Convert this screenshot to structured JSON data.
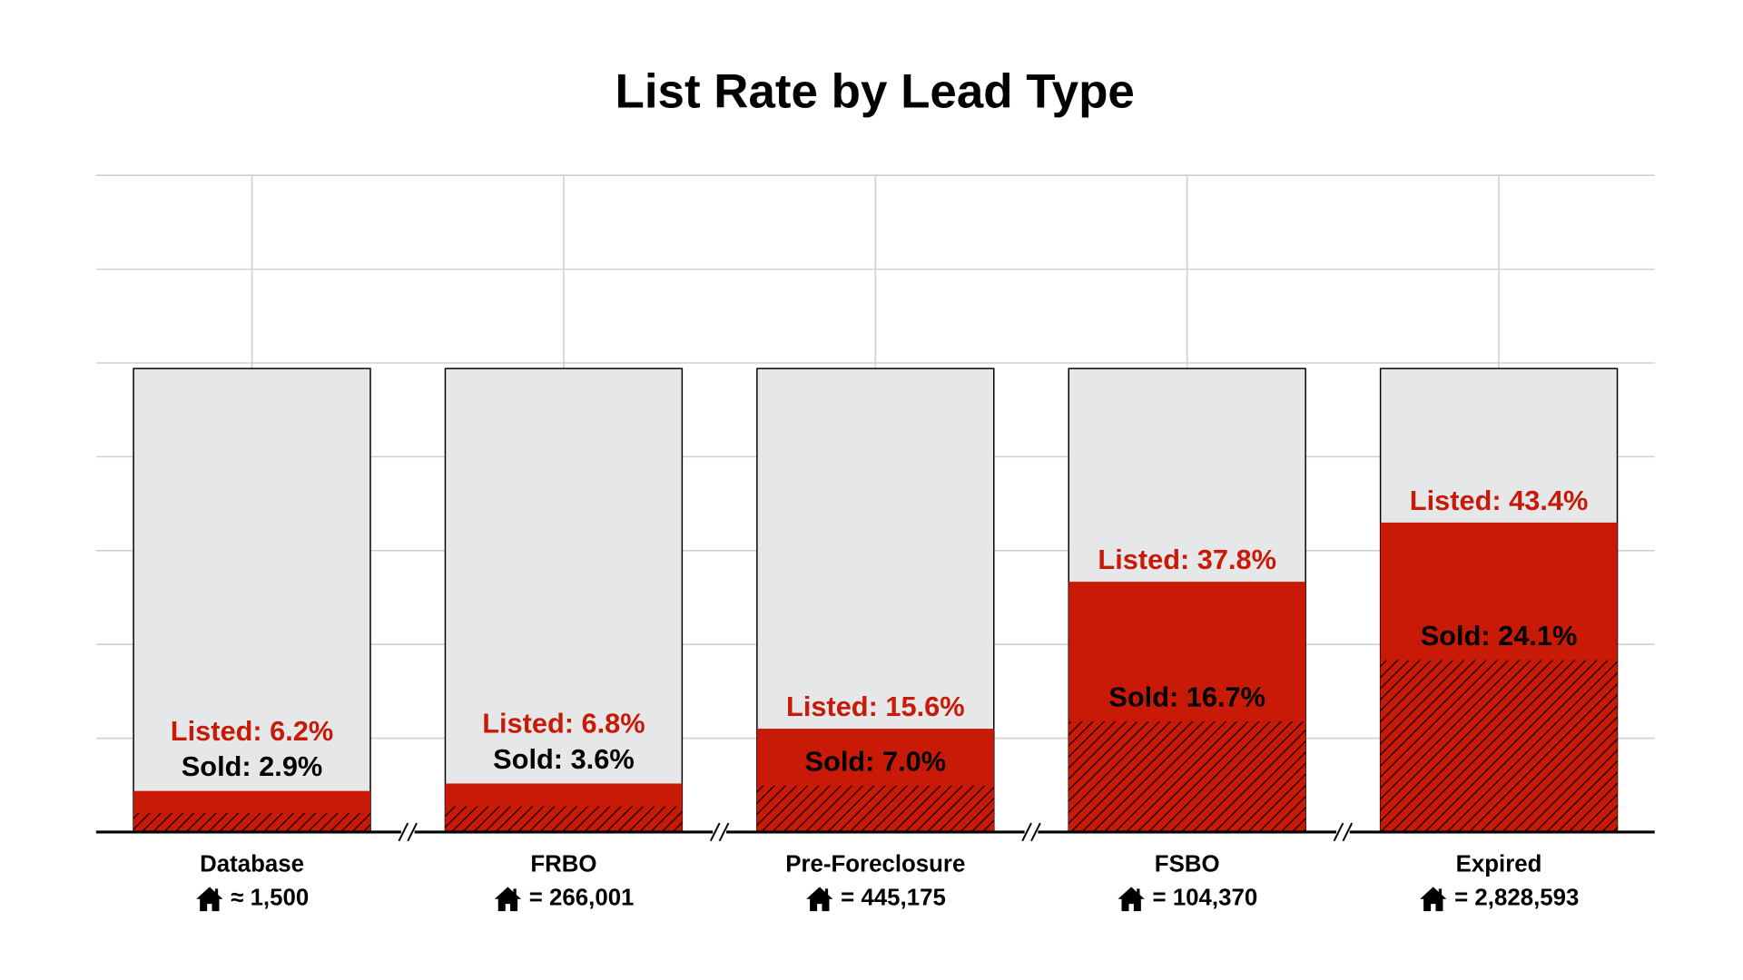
{
  "chart_data": {
    "type": "bar",
    "title": "List Rate by Lead Type",
    "categories": [
      "Database",
      "FRBO",
      "Pre-Foreclosure",
      "FSBO",
      "Expired"
    ],
    "count_labels": [
      "≈ 1,500",
      "= 266,001",
      "= 445,175",
      "= 104,370",
      "= 2,828,593"
    ],
    "broken_axis": true,
    "panel_ylims": [
      [
        0,
        70
      ],
      [
        0,
        65
      ],
      [
        0,
        70
      ],
      [
        0,
        70
      ],
      [
        0,
        65
      ]
    ],
    "series": [
      {
        "name": "Listed",
        "color": "#c81a06",
        "values": [
          6.2,
          6.8,
          15.6,
          37.8,
          43.4
        ],
        "value_labels": [
          "Listed: 6.2%",
          "Listed: 6.8%",
          "Listed: 15.6%",
          "Listed: 37.8%",
          "Listed: 43.4%"
        ]
      },
      {
        "name": "Sold",
        "color": "#c81a06",
        "hatch": true,
        "values": [
          2.9,
          3.6,
          7.0,
          16.7,
          24.1
        ],
        "value_labels": [
          "Sold: 2.9%",
          "Sold: 3.6%",
          "Sold: 7.0%",
          "Sold: 16.7%",
          "Sold: 24.1%"
        ]
      }
    ],
    "grid": true
  }
}
